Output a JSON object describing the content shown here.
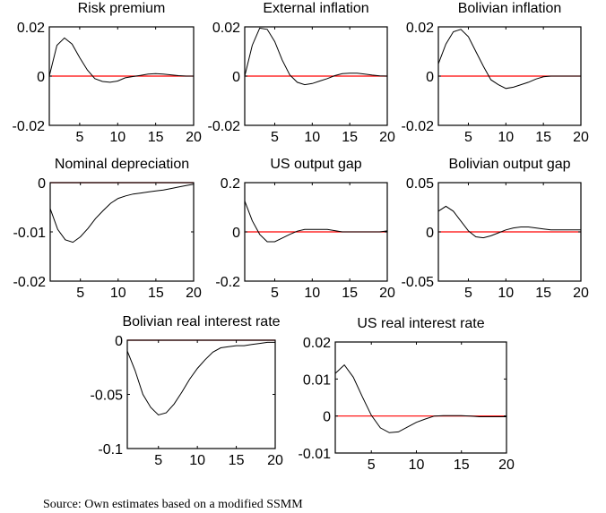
{
  "figure": {
    "source_note": "Source: Own estimates based on a modified SSMM",
    "colors": {
      "line": "#000000",
      "zero_line": "#ff0000",
      "axes": "#000000"
    }
  },
  "chart_data": [
    {
      "type": "line",
      "title": "Risk premium",
      "xlabel": "",
      "ylabel": "",
      "xlim": [
        1,
        20
      ],
      "ylim": [
        -0.02,
        0.02
      ],
      "xticks": [
        5,
        10,
        15,
        20
      ],
      "yticks": [
        -0.02,
        0,
        0.02
      ],
      "ytick_labels": [
        "-0.02",
        "0",
        "0.02"
      ],
      "grid": false,
      "x": [
        1,
        2,
        3,
        4,
        5,
        6,
        7,
        8,
        9,
        10,
        11,
        12,
        13,
        14,
        15,
        16,
        17,
        18,
        19,
        20
      ],
      "series": [
        {
          "name": "response",
          "values": [
            0,
            0.0125,
            0.0155,
            0.013,
            0.0075,
            0.0025,
            -0.001,
            -0.0022,
            -0.0025,
            -0.002,
            -0.0007,
            -0.0002,
            0.0003,
            0.0008,
            0.001,
            0.0008,
            0.0005,
            0.0002,
            0.0,
            0.0
          ]
        },
        {
          "name": "zero",
          "values": [
            0,
            0,
            0,
            0,
            0,
            0,
            0,
            0,
            0,
            0,
            0,
            0,
            0,
            0,
            0,
            0,
            0,
            0,
            0,
            0
          ]
        }
      ]
    },
    {
      "type": "line",
      "title": "External inflation",
      "xlabel": "",
      "ylabel": "",
      "xlim": [
        1,
        20
      ],
      "ylim": [
        -0.02,
        0.02
      ],
      "xticks": [
        5,
        10,
        15,
        20
      ],
      "yticks": [
        -0.02,
        0,
        0.02
      ],
      "ytick_labels": [
        "-0.02",
        "0",
        "0.02"
      ],
      "grid": false,
      "x": [
        1,
        2,
        3,
        4,
        5,
        6,
        7,
        8,
        9,
        10,
        11,
        12,
        13,
        14,
        15,
        16,
        17,
        18,
        19,
        20
      ],
      "series": [
        {
          "name": "response",
          "values": [
            0,
            0.0125,
            0.0195,
            0.019,
            0.014,
            0.0065,
            0.0005,
            -0.0025,
            -0.0035,
            -0.003,
            -0.002,
            -0.001,
            0.0002,
            0.001,
            0.0012,
            0.0012,
            0.0008,
            0.0004,
            0.0001,
            0.0
          ]
        },
        {
          "name": "zero",
          "values": [
            0,
            0,
            0,
            0,
            0,
            0,
            0,
            0,
            0,
            0,
            0,
            0,
            0,
            0,
            0,
            0,
            0,
            0,
            0,
            0
          ]
        }
      ]
    },
    {
      "type": "line",
      "title": "Bolivian inflation",
      "xlabel": "",
      "ylabel": "",
      "xlim": [
        1,
        20
      ],
      "ylim": [
        -0.02,
        0.02
      ],
      "xticks": [
        5,
        10,
        15,
        20
      ],
      "yticks": [
        -0.02,
        0,
        0.02
      ],
      "ytick_labels": [
        "-0.02",
        "0",
        "0.02"
      ],
      "grid": false,
      "x": [
        1,
        2,
        3,
        4,
        5,
        6,
        7,
        8,
        9,
        10,
        11,
        12,
        13,
        14,
        15,
        16,
        17,
        18,
        19,
        20
      ],
      "series": [
        {
          "name": "response",
          "values": [
            0.005,
            0.013,
            0.018,
            0.019,
            0.016,
            0.01,
            0.004,
            -0.0015,
            -0.0035,
            -0.005,
            -0.0045,
            -0.0035,
            -0.0025,
            -0.0012,
            -0.0003,
            0.0,
            0.0,
            0.0,
            0.0,
            0.0
          ]
        },
        {
          "name": "zero",
          "values": [
            0,
            0,
            0,
            0,
            0,
            0,
            0,
            0,
            0,
            0,
            0,
            0,
            0,
            0,
            0,
            0,
            0,
            0,
            0,
            0
          ]
        }
      ]
    },
    {
      "type": "line",
      "title": "Nominal depreciation",
      "xlabel": "",
      "ylabel": "",
      "xlim": [
        1,
        20
      ],
      "ylim": [
        -0.02,
        0
      ],
      "xticks": [
        5,
        10,
        15,
        20
      ],
      "yticks": [
        -0.02,
        -0.01,
        0
      ],
      "ytick_labels": [
        "-0.02",
        "-0.01",
        "0"
      ],
      "grid": false,
      "x": [
        1,
        2,
        3,
        4,
        5,
        6,
        7,
        8,
        9,
        10,
        11,
        12,
        13,
        14,
        15,
        16,
        17,
        18,
        19,
        20
      ],
      "series": [
        {
          "name": "response",
          "values": [
            -0.0053,
            -0.0095,
            -0.0116,
            -0.0121,
            -0.011,
            -0.0093,
            -0.0073,
            -0.0057,
            -0.0042,
            -0.0032,
            -0.0027,
            -0.0023,
            -0.0021,
            -0.0019,
            -0.0017,
            -0.0015,
            -0.0012,
            -0.0009,
            -0.0006,
            -0.0003
          ]
        },
        {
          "name": "zero",
          "values": [
            0,
            0,
            0,
            0,
            0,
            0,
            0,
            0,
            0,
            0,
            0,
            0,
            0,
            0,
            0,
            0,
            0,
            0,
            0,
            0
          ]
        }
      ]
    },
    {
      "type": "line",
      "title": "US output gap",
      "xlabel": "",
      "ylabel": "",
      "xlim": [
        1,
        20
      ],
      "ylim": [
        -0.2,
        0.2
      ],
      "xticks": [
        5,
        10,
        15,
        20
      ],
      "yticks": [
        -0.2,
        0,
        0.2
      ],
      "ytick_labels": [
        "-0.2",
        "0",
        "0.2"
      ],
      "grid": false,
      "x": [
        1,
        2,
        3,
        4,
        5,
        6,
        7,
        8,
        9,
        10,
        11,
        12,
        13,
        14,
        15,
        16,
        17,
        18,
        19,
        20
      ],
      "series": [
        {
          "name": "response",
          "values": [
            0.125,
            0.045,
            -0.01,
            -0.04,
            -0.04,
            -0.025,
            -0.01,
            0.003,
            0.01,
            0.01,
            0.01,
            0.01,
            0.005,
            0.0,
            0.0,
            0.0,
            0.0,
            0.0,
            0.0,
            0.004
          ]
        },
        {
          "name": "zero",
          "values": [
            0,
            0,
            0,
            0,
            0,
            0,
            0,
            0,
            0,
            0,
            0,
            0,
            0,
            0,
            0,
            0,
            0,
            0,
            0,
            0
          ]
        }
      ]
    },
    {
      "type": "line",
      "title": "Bolivian output gap",
      "xlabel": "",
      "ylabel": "",
      "xlim": [
        1,
        20
      ],
      "ylim": [
        -0.05,
        0.05
      ],
      "xticks": [
        5,
        10,
        15,
        20
      ],
      "yticks": [
        -0.05,
        0,
        0.05
      ],
      "ytick_labels": [
        "-0.05",
        "0",
        "0.05"
      ],
      "grid": false,
      "x": [
        1,
        2,
        3,
        4,
        5,
        6,
        7,
        8,
        9,
        10,
        11,
        12,
        13,
        14,
        15,
        16,
        17,
        18,
        19,
        20
      ],
      "series": [
        {
          "name": "response",
          "values": [
            0.021,
            0.026,
            0.021,
            0.011,
            0.001,
            -0.005,
            -0.006,
            -0.004,
            -0.001,
            0.002,
            0.004,
            0.005,
            0.005,
            0.004,
            0.003,
            0.002,
            0.002,
            0.002,
            0.002,
            0.002
          ]
        },
        {
          "name": "zero",
          "values": [
            0,
            0,
            0,
            0,
            0,
            0,
            0,
            0,
            0,
            0,
            0,
            0,
            0,
            0,
            0,
            0,
            0,
            0,
            0,
            0
          ]
        }
      ]
    },
    {
      "type": "line",
      "title": "Bolivian real interest rate",
      "xlabel": "",
      "ylabel": "",
      "xlim": [
        1,
        20
      ],
      "ylim": [
        -0.1,
        0
      ],
      "xticks": [
        5,
        10,
        15,
        20
      ],
      "yticks": [
        -0.1,
        -0.05,
        0
      ],
      "ytick_labels": [
        "-0.1",
        "-0.05",
        "0"
      ],
      "grid": false,
      "x": [
        1,
        2,
        3,
        4,
        5,
        6,
        7,
        8,
        9,
        10,
        11,
        12,
        13,
        14,
        15,
        16,
        17,
        18,
        19,
        20
      ],
      "series": [
        {
          "name": "response",
          "values": [
            -0.01,
            -0.028,
            -0.05,
            -0.062,
            -0.069,
            -0.067,
            -0.059,
            -0.048,
            -0.036,
            -0.026,
            -0.018,
            -0.011,
            -0.007,
            -0.006,
            -0.005,
            -0.005,
            -0.004,
            -0.003,
            -0.002,
            -0.002
          ]
        },
        {
          "name": "zero",
          "values": [
            0,
            0,
            0,
            0,
            0,
            0,
            0,
            0,
            0,
            0,
            0,
            0,
            0,
            0,
            0,
            0,
            0,
            0,
            0,
            0
          ]
        }
      ]
    },
    {
      "type": "line",
      "title": "US real interest rate",
      "xlabel": "",
      "ylabel": "",
      "xlim": [
        1,
        20
      ],
      "ylim": [
        -0.01,
        0.02
      ],
      "xticks": [
        5,
        10,
        15,
        20
      ],
      "yticks": [
        -0.01,
        0,
        0.01,
        0.02
      ],
      "ytick_labels": [
        "-0.01",
        "0",
        "0.01",
        "0.02"
      ],
      "grid": false,
      "x": [
        1,
        2,
        3,
        4,
        5,
        6,
        7,
        8,
        9,
        10,
        11,
        12,
        13,
        14,
        15,
        16,
        17,
        18,
        19,
        20
      ],
      "series": [
        {
          "name": "response",
          "values": [
            0.0115,
            0.0138,
            0.0105,
            0.0052,
            0.0002,
            -0.0032,
            -0.0045,
            -0.0043,
            -0.003,
            -0.0017,
            -0.0008,
            0.0,
            0.0001,
            0.0001,
            0.0001,
            0.0,
            -0.0002,
            -0.0002,
            -0.0002,
            -0.0002
          ]
        },
        {
          "name": "zero",
          "values": [
            0,
            0,
            0,
            0,
            0,
            0,
            0,
            0,
            0,
            0,
            0,
            0,
            0,
            0,
            0,
            0,
            0,
            0,
            0,
            0
          ]
        }
      ]
    }
  ]
}
